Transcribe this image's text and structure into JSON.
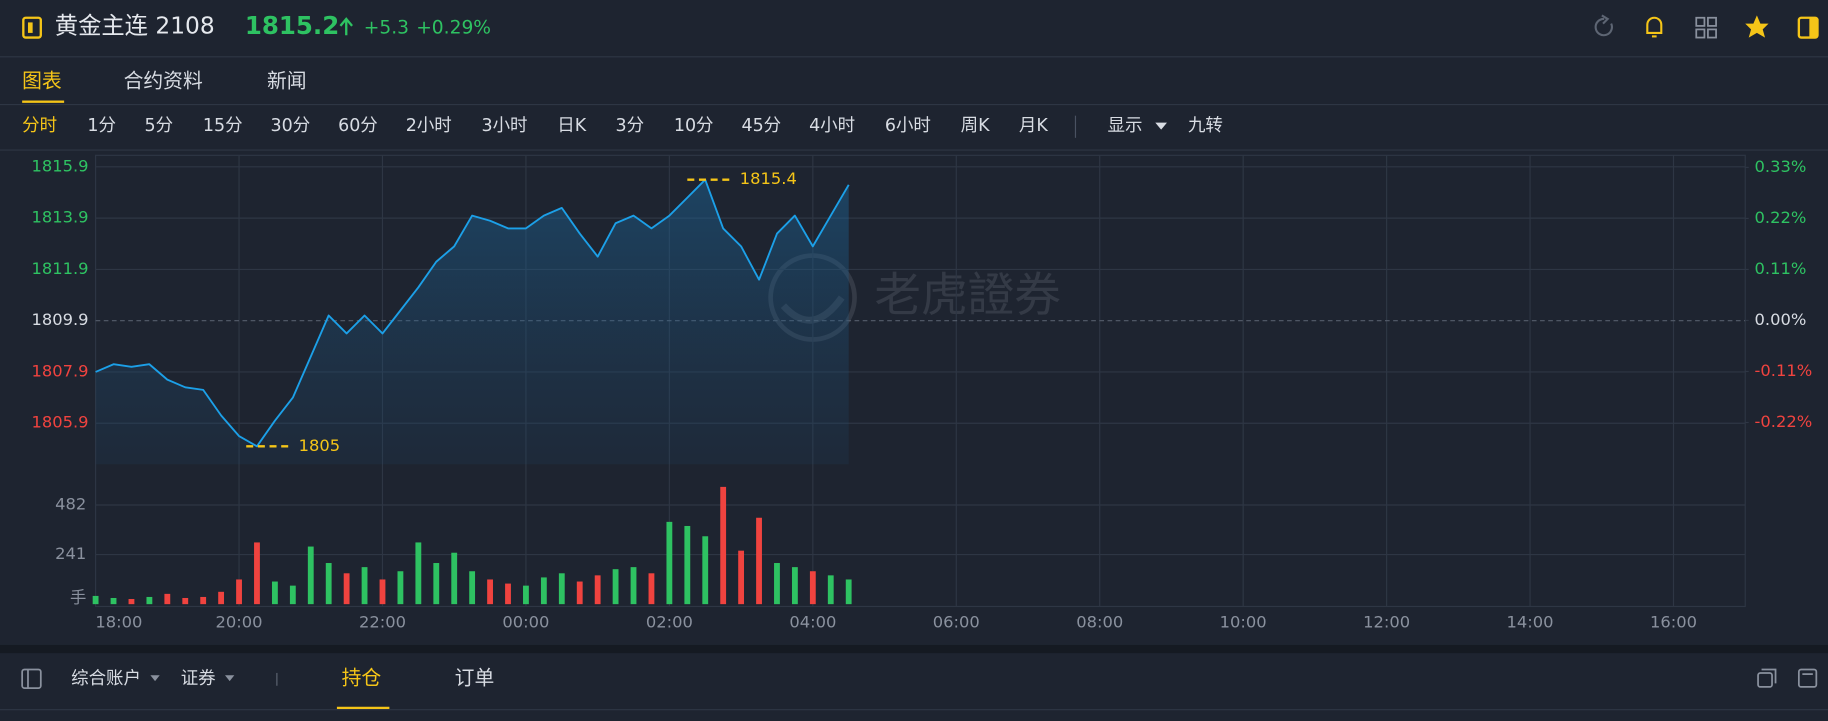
{
  "header": {
    "title": "黄金主连 2108",
    "price": "1815.2",
    "change": "+5.3",
    "change_pct": "+0.29%"
  },
  "tabs": [
    "图表",
    "合约资料",
    "新闻"
  ],
  "periods": [
    "分时",
    "1分",
    "5分",
    "15分",
    "30分",
    "60分",
    "2小时",
    "3小时",
    "日K",
    "3分",
    "10分",
    "45分",
    "4小时",
    "6小时",
    "周K",
    "月K",
    "显示",
    "九转"
  ],
  "watermark": "老虎證券",
  "chart_data": [
    {
      "type": "line",
      "x": [
        "18:00",
        "18:15",
        "18:30",
        "18:45",
        "19:00",
        "19:15",
        "19:30",
        "19:45",
        "20:00",
        "20:15",
        "20:30",
        "20:45",
        "21:00",
        "21:15",
        "21:30",
        "21:45",
        "22:00",
        "22:15",
        "22:30",
        "22:45",
        "23:00",
        "23:15",
        "23:30",
        "23:45",
        "00:00",
        "00:15",
        "00:30",
        "00:45",
        "01:00",
        "01:15",
        "01:30",
        "01:45",
        "02:00",
        "02:15",
        "02:30",
        "02:45",
        "03:00",
        "03:15",
        "03:30",
        "03:45",
        "04:00",
        "04:15",
        "04:30"
      ],
      "series": [
        {
          "color": "#1ca0e8",
          "values": [
            1807.9,
            1808.2,
            1808.1,
            1808.2,
            1807.6,
            1807.3,
            1807.2,
            1806.2,
            1805.4,
            1805.0,
            1806.0,
            1806.9,
            1808.5,
            1810.1,
            1809.4,
            1810.1,
            1809.4,
            1810.3,
            1811.2,
            1812.2,
            1812.8,
            1814.0,
            1813.8,
            1813.5,
            1813.5,
            1814.0,
            1814.3,
            1813.3,
            1812.4,
            1813.7,
            1814.0,
            1813.5,
            1814.0,
            1814.7,
            1815.4,
            1813.5,
            1812.8,
            1811.5,
            1813.3,
            1814.0,
            1812.8,
            1814.0,
            1815.2
          ]
        }
      ],
      "xlim": [
        "18:00",
        "17:00"
      ],
      "xticks": [
        "18:00",
        "20:00",
        "22:00",
        "00:00",
        "02:00",
        "04:00",
        "06:00",
        "08:00",
        "10:00",
        "12:00",
        "14:00",
        "16:00"
      ],
      "ylim": [
        1804.3,
        1816.35
      ],
      "yticks": [
        1815.9,
        1813.9,
        1811.9,
        1809.9,
        1807.9,
        1805.9
      ],
      "base": 1809.9,
      "y2lim": [
        -0.31,
        0.356
      ],
      "y2ticks": [
        {
          "value": 0.33,
          "label": "0.33%"
        },
        {
          "value": 0.22,
          "label": "0.22%"
        },
        {
          "value": 0.11,
          "label": "0.11%"
        },
        {
          "value": 0,
          "label": "0.00%"
        },
        {
          "value": -0.11,
          "label": "-0.11%"
        },
        {
          "value": -0.22,
          "label": "-0.22%"
        }
      ],
      "annotations": [
        {
          "x": "02:15",
          "value": 1815.4
        },
        {
          "x": "20:06",
          "value": 1805.0
        }
      ],
      "up_color": "#2ec262",
      "down_color": "#f0433f",
      "grid": true
    },
    {
      "type": "bar",
      "x": [
        "18:00",
        "18:15",
        "18:30",
        "18:45",
        "19:00",
        "19:15",
        "19:30",
        "19:45",
        "20:00",
        "20:15",
        "20:30",
        "20:45",
        "21:00",
        "21:15",
        "21:30",
        "21:45",
        "22:00",
        "22:15",
        "22:30",
        "22:45",
        "23:00",
        "23:15",
        "23:30",
        "23:45",
        "00:00",
        "00:15",
        "00:30",
        "00:45",
        "01:00",
        "01:15",
        "01:30",
        "01:45",
        "02:00",
        "02:15",
        "02:30",
        "02:45",
        "03:00",
        "03:15",
        "03:30",
        "03:45",
        "04:00",
        "04:15",
        "04:30"
      ],
      "values": [
        40,
        30,
        25,
        35,
        50,
        30,
        35,
        60,
        120,
        300,
        110,
        90,
        280,
        200,
        150,
        180,
        120,
        160,
        300,
        200,
        250,
        160,
        120,
        100,
        90,
        130,
        150,
        110,
        140,
        170,
        180,
        150,
        400,
        380,
        330,
        570,
        260,
        420,
        200,
        180,
        160,
        140,
        120
      ],
      "ylim": [
        0,
        595
      ],
      "yticks": [
        241,
        482
      ],
      "y_unit": "手",
      "up_color": "#2ec262",
      "down_color": "#f0433f",
      "grid": true
    }
  ],
  "bottom": {
    "account": "综合账户",
    "market": "证券",
    "tabs": [
      "持仓",
      "订单"
    ]
  }
}
